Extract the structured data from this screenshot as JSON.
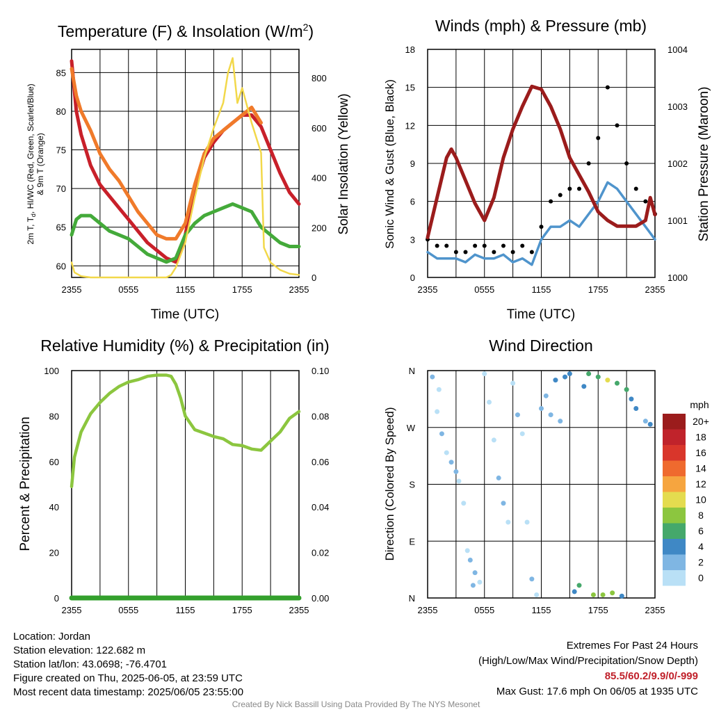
{
  "colors": {
    "temp": "#c8202a",
    "dew": "#44aa3a",
    "heat": "#f07a2a",
    "solar": "#f2d84a",
    "wind": "#4f94cc",
    "gust": "#000000",
    "pressure": "#9b1c1c",
    "rh": "#8cc63f",
    "precip": "#33a02c"
  },
  "chart_data": [
    {
      "type": "line",
      "title": "Temperature (F) & Insolation (W/m²)",
      "xlabel": "Time (UTC)",
      "ylabel": "2m T, Tₑ, HI/WC (Red, Green, Scarlet/Blue) & 9m T (Orange)",
      "ylabel_lines": [
        "2m T, T",
        "d",
        ", HI/WC (Red, Green, Scarlet/Blue)",
        "& 9m T (Orange)"
      ],
      "y2label": "Solar Insolation (Yellow)",
      "x_ticks": [
        "2355",
        "0555",
        "1155",
        "1755",
        "2355"
      ],
      "x_range": [
        0,
        24
      ],
      "ylim": [
        58.5,
        88
      ],
      "y_ticks": [
        60,
        65,
        70,
        75,
        80,
        85
      ],
      "y2lim": [
        0,
        915
      ],
      "y2_ticks": [
        0,
        200,
        400,
        600,
        800
      ],
      "series": [
        {
          "name": "2m T",
          "color_key": "temp",
          "x": [
            0,
            0.5,
            1,
            2,
            3,
            4,
            5,
            6,
            7,
            8,
            9,
            10,
            11,
            12,
            13,
            14,
            15,
            16,
            17,
            18,
            19,
            20,
            21,
            22,
            23,
            24
          ],
          "values": [
            86.5,
            80,
            77,
            73,
            70.5,
            69,
            67.5,
            66,
            64.5,
            63,
            62,
            61,
            60.5,
            64,
            70,
            74,
            76,
            77.5,
            78.5,
            79.5,
            79.5,
            78,
            75,
            72,
            69.5,
            68
          ]
        },
        {
          "name": "9m T",
          "color_key": "heat",
          "x": [
            0,
            0.5,
            1,
            2,
            3,
            4,
            5,
            6,
            7,
            8,
            9,
            10,
            11,
            12,
            13,
            14,
            15,
            16,
            17,
            18,
            19,
            20
          ],
          "values": [
            85.5,
            82,
            80,
            77.5,
            74.5,
            72.5,
            71,
            69,
            67,
            65.5,
            64,
            63.5,
            63.5,
            65.5,
            70.5,
            74.5,
            76.5,
            77.5,
            78.5,
            79.5,
            80.5,
            78.5
          ]
        },
        {
          "name": "Td",
          "color_key": "dew",
          "x": [
            0,
            0.5,
            1,
            2,
            3,
            4,
            5,
            6,
            7,
            8,
            9,
            10,
            11,
            12,
            13,
            14,
            15,
            16,
            17,
            18,
            19,
            20,
            21,
            22,
            23,
            24
          ],
          "values": [
            64,
            66,
            66.5,
            66.5,
            65.5,
            64.5,
            64,
            63.5,
            62.5,
            61.5,
            61,
            60.5,
            61,
            64,
            65.5,
            66.5,
            67,
            67.5,
            68,
            67.5,
            67,
            65,
            64,
            63,
            62.5,
            62.5
          ]
        },
        {
          "name": "Solar",
          "color_key": "solar",
          "axis": "y2",
          "x": [
            0,
            0.3,
            1,
            2,
            3,
            4,
            5,
            6,
            7,
            8,
            9,
            10,
            10.5,
            11,
            12,
            13,
            14,
            15,
            16,
            16.5,
            17,
            17.5,
            18,
            19,
            20,
            20.3,
            21,
            22,
            23,
            24
          ],
          "values": [
            60,
            20,
            5,
            0,
            0,
            0,
            0,
            0,
            0,
            0,
            0,
            0,
            10,
            40,
            140,
            320,
            480,
            600,
            700,
            820,
            880,
            700,
            760,
            620,
            500,
            120,
            60,
            30,
            15,
            10
          ]
        }
      ]
    },
    {
      "type": "line",
      "title": "Winds (mph) & Pressure (mb)",
      "xlabel": "Time (UTC)",
      "ylabel": "Sonic Wind & Gust (Blue, Black)",
      "y2label": "Station Pressure (Maroon)",
      "x_ticks": [
        "2355",
        "0555",
        "1155",
        "1755",
        "2355"
      ],
      "x_range": [
        0,
        24
      ],
      "ylim": [
        0,
        18
      ],
      "y_ticks": [
        0,
        3,
        6,
        9,
        12,
        15,
        18
      ],
      "y2lim": [
        1000,
        1004
      ],
      "y2_ticks": [
        1000,
        1001,
        1002,
        1003,
        1004
      ],
      "series": [
        {
          "name": "Sonic Wind",
          "color_key": "wind",
          "x": [
            0,
            1,
            2,
            3,
            4,
            5,
            6,
            7,
            8,
            9,
            10,
            11,
            12,
            13,
            14,
            15,
            16,
            17,
            18,
            19,
            20,
            21,
            22,
            23,
            24
          ],
          "values": [
            2,
            1.5,
            1.5,
            1.5,
            1.2,
            1.8,
            1.5,
            1.5,
            1.8,
            1.2,
            1.5,
            1,
            3,
            4,
            4,
            4.5,
            4,
            5,
            6,
            7.5,
            7,
            6,
            5,
            4,
            3
          ]
        },
        {
          "name": "Gust",
          "color_key": "gust",
          "x": [
            0,
            1,
            2,
            3,
            4,
            5,
            6,
            7,
            8,
            9,
            10,
            11,
            12,
            13,
            14,
            15,
            16,
            17,
            18,
            19,
            20,
            21,
            22,
            23,
            24
          ],
          "values": [
            3,
            2.5,
            2.5,
            2,
            2,
            2.5,
            2.5,
            2,
            2.5,
            2,
            2.5,
            2,
            4,
            6,
            6.5,
            7,
            7,
            9,
            11,
            15,
            12,
            9,
            7,
            6,
            5
          ]
        },
        {
          "name": "Pressure",
          "color_key": "pressure",
          "axis": "y2",
          "x": [
            0,
            1,
            2,
            2.5,
            3,
            4,
            5,
            6,
            7,
            8,
            9,
            10,
            11,
            12,
            13,
            14,
            15,
            16,
            17,
            18,
            19,
            20,
            21,
            22,
            23,
            23.5,
            24
          ],
          "values": [
            1000.7,
            1001.4,
            1002.1,
            1002.25,
            1002.1,
            1001.7,
            1001.3,
            1001.0,
            1001.4,
            1002.1,
            1002.6,
            1003.0,
            1003.35,
            1003.3,
            1003.0,
            1002.6,
            1002.1,
            1001.8,
            1001.5,
            1001.15,
            1001.0,
            1000.9,
            1000.9,
            1000.9,
            1001.0,
            1001.4,
            1001.1
          ]
        }
      ]
    },
    {
      "type": "line",
      "title": "Relative Humidity (%) & Precipitation (in)",
      "xlabel": "",
      "ylabel": "Percent & Precipitation",
      "x_ticks": [
        "2355",
        "0555",
        "1155",
        "1755",
        "2355"
      ],
      "x_range": [
        0,
        24
      ],
      "ylim": [
        0,
        100
      ],
      "y_ticks": [
        0,
        20,
        40,
        60,
        80,
        100
      ],
      "y2lim": [
        0,
        0.1
      ],
      "y2_ticks": [
        "0.00",
        "0.02",
        "0.04",
        "0.06",
        "0.08",
        "0.10"
      ],
      "series": [
        {
          "name": "RH",
          "color_key": "rh",
          "x": [
            0,
            0.3,
            1,
            1.5,
            2,
            3,
            4,
            5,
            6,
            7,
            8,
            9,
            10,
            10.5,
            11,
            11.5,
            12,
            13,
            14,
            15,
            16,
            17,
            18,
            19,
            20,
            21,
            22,
            23,
            24
          ],
          "values": [
            49,
            62,
            73,
            77,
            81,
            86,
            90,
            93,
            95,
            96,
            97.5,
            98,
            98,
            97.5,
            94,
            88,
            80,
            74,
            72.5,
            71,
            70,
            67.5,
            67,
            65.5,
            65,
            69,
            73,
            79,
            82
          ]
        },
        {
          "name": "Precipitation",
          "color_key": "precip",
          "axis": "y2",
          "x": [
            0,
            24
          ],
          "values": [
            0,
            0
          ]
        }
      ]
    },
    {
      "type": "scatter",
      "title": "Wind Direction",
      "ylabel": "Direction (Colored By Speed)",
      "x_ticks": [
        "2355",
        "0555",
        "1155",
        "1755",
        "2355"
      ],
      "x_range": [
        0,
        24
      ],
      "ylim": [
        0,
        360
      ],
      "y_ticks": [
        "N",
        "E",
        "S",
        "W",
        "N"
      ],
      "legend_title": "mph",
      "legend_position": "right",
      "legend": [
        {
          "label": "20+",
          "color": "#9b1c1c"
        },
        {
          "label": "18",
          "color": "#c0232b"
        },
        {
          "label": "16",
          "color": "#d9362b"
        },
        {
          "label": "14",
          "color": "#ef6a2e"
        },
        {
          "label": "12",
          "color": "#f6a53f"
        },
        {
          "label": "10",
          "color": "#e4dc4f"
        },
        {
          "label": "8",
          "color": "#8cc63f"
        },
        {
          "label": "6",
          "color": "#45a86b"
        },
        {
          "label": "4",
          "color": "#3f88c5"
        },
        {
          "label": "2",
          "color": "#7fb6e3"
        },
        {
          "label": "0",
          "color": "#b9e0f6"
        }
      ],
      "points": [
        {
          "x": 0.5,
          "y": 350,
          "s": 2
        },
        {
          "x": 1,
          "y": 295,
          "s": 1
        },
        {
          "x": 1.2,
          "y": 330,
          "s": 1
        },
        {
          "x": 1.5,
          "y": 260,
          "s": 3
        },
        {
          "x": 2,
          "y": 230,
          "s": 1
        },
        {
          "x": 2.5,
          "y": 215,
          "s": 2
        },
        {
          "x": 3,
          "y": 200,
          "s": 3
        },
        {
          "x": 3.3,
          "y": 185,
          "s": 1
        },
        {
          "x": 3.8,
          "y": 150,
          "s": 1
        },
        {
          "x": 4.2,
          "y": 75,
          "s": 1
        },
        {
          "x": 4.5,
          "y": 60,
          "s": 2
        },
        {
          "x": 5,
          "y": 40,
          "s": 3
        },
        {
          "x": 5.5,
          "y": 25,
          "s": 1
        },
        {
          "x": 4.8,
          "y": 20,
          "s": 2
        },
        {
          "x": 6,
          "y": 355,
          "s": 1
        },
        {
          "x": 6.5,
          "y": 310,
          "s": 1
        },
        {
          "x": 7,
          "y": 250,
          "s": 1
        },
        {
          "x": 7.5,
          "y": 190,
          "s": 2
        },
        {
          "x": 8,
          "y": 150,
          "s": 2
        },
        {
          "x": 8.5,
          "y": 120,
          "s": 1
        },
        {
          "x": 9,
          "y": 340,
          "s": 1
        },
        {
          "x": 9.5,
          "y": 290,
          "s": 2
        },
        {
          "x": 10,
          "y": 260,
          "s": 1
        },
        {
          "x": 10.5,
          "y": 120,
          "s": 1
        },
        {
          "x": 11,
          "y": 30,
          "s": 2
        },
        {
          "x": 11.5,
          "y": 5,
          "s": 1
        },
        {
          "x": 12,
          "y": 300,
          "s": 2
        },
        {
          "x": 12.5,
          "y": 320,
          "s": 3
        },
        {
          "x": 13,
          "y": 290,
          "s": 3
        },
        {
          "x": 13.5,
          "y": 345,
          "s": 4
        },
        {
          "x": 14,
          "y": 280,
          "s": 3
        },
        {
          "x": 14.5,
          "y": 350,
          "s": 4
        },
        {
          "x": 15,
          "y": 355,
          "s": 4
        },
        {
          "x": 15.5,
          "y": 10,
          "s": 4
        },
        {
          "x": 16,
          "y": 20,
          "s": 6
        },
        {
          "x": 16.5,
          "y": 335,
          "s": 4
        },
        {
          "x": 17,
          "y": 355,
          "s": 6
        },
        {
          "x": 17.5,
          "y": 5,
          "s": 8
        },
        {
          "x": 18,
          "y": 350,
          "s": 7
        },
        {
          "x": 18.5,
          "y": 5,
          "s": 8
        },
        {
          "x": 19,
          "y": 345,
          "s": 10
        },
        {
          "x": 19.5,
          "y": 8,
          "s": 8
        },
        {
          "x": 20,
          "y": 340,
          "s": 6
        },
        {
          "x": 20.5,
          "y": 3,
          "s": 4
        },
        {
          "x": 21,
          "y": 330,
          "s": 6
        },
        {
          "x": 21.5,
          "y": 315,
          "s": 4
        },
        {
          "x": 22,
          "y": 300,
          "s": 4
        },
        {
          "x": 23,
          "y": 280,
          "s": 3
        },
        {
          "x": 23.5,
          "y": 275,
          "s": 4
        }
      ]
    }
  ],
  "footer_left": {
    "location": "Location: Jordan",
    "elevation": "Station elevation: 122.682 m",
    "latlon": "Station lat/lon: 43.0698; -76.4701",
    "created": "Figure created on Thu, 2025-06-05, at 23:59 UTC",
    "recent": "Most recent data timestamp: 2025/06/05 23:55:00"
  },
  "footer_right": {
    "heading": "Extremes For Past 24 Hours",
    "subheading": "(High/Low/Max Wind/Precipitation/Snow Depth)",
    "values": "85.5/60.2/9.9/0/-999",
    "max_gust": "Max Gust: 17.6 mph On 06/05 at 1935 UTC"
  },
  "credit": "Created By Nick Bassill Using Data Provided By The NYS Mesonet"
}
